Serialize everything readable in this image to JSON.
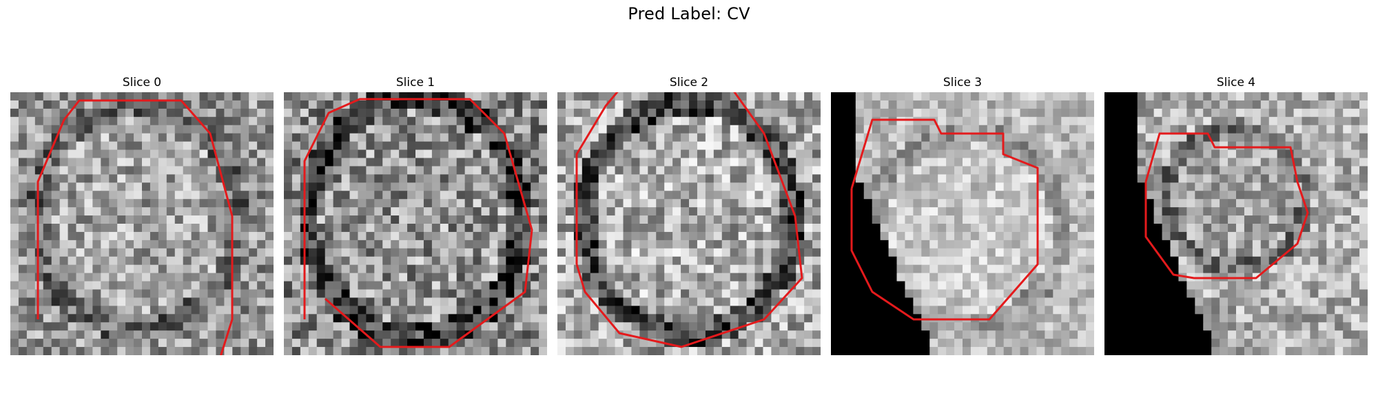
{
  "figure": {
    "suptitle": "Pred Label: CV"
  },
  "panels": [
    {
      "title": "Slice 0"
    },
    {
      "title": "Slice 1"
    },
    {
      "title": "Slice 2"
    },
    {
      "title": "Slice 3"
    },
    {
      "title": "Slice 4"
    }
  ],
  "style": {
    "contour_color": "#e41a1c",
    "background": "#ffffff"
  }
}
